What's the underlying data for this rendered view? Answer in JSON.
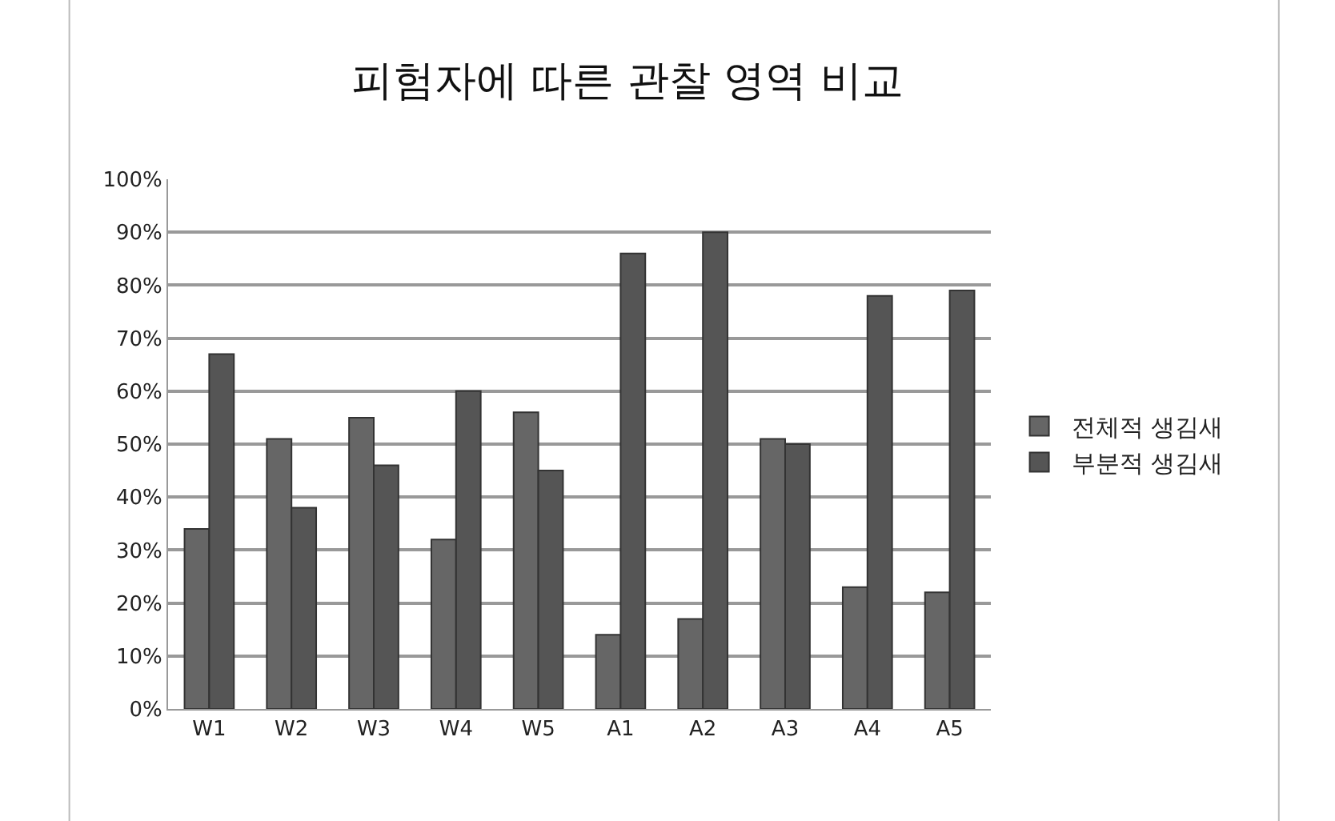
{
  "chart_data": {
    "type": "bar",
    "title": "피험자에 따른 관찰 영역 비교",
    "categories": [
      "W1",
      "W2",
      "W3",
      "W4",
      "W5",
      "A1",
      "A2",
      "A3",
      "A4",
      "A5"
    ],
    "series": [
      {
        "name": "전체적 생김새",
        "color": "#666666",
        "values": [
          0.34,
          0.51,
          0.55,
          0.32,
          0.56,
          0.14,
          0.17,
          0.51,
          0.23,
          0.22
        ]
      },
      {
        "name": "부분적 생김새",
        "color": "#555555",
        "values": [
          0.67,
          0.38,
          0.46,
          0.6,
          0.45,
          0.86,
          0.9,
          0.5,
          0.78,
          0.79
        ]
      }
    ],
    "ylim": [
      0,
      1
    ],
    "yticks": [
      {
        "value": 0,
        "label": "0%"
      },
      {
        "value": 0.1,
        "label": "10%"
      },
      {
        "value": 0.2,
        "label": "20%"
      },
      {
        "value": 0.3,
        "label": "30%"
      },
      {
        "value": 0.4,
        "label": "40%"
      },
      {
        "value": 0.5,
        "label": "50%"
      },
      {
        "value": 0.6,
        "label": "60%"
      },
      {
        "value": 0.7,
        "label": "70%"
      },
      {
        "value": 0.8,
        "label": "80%"
      },
      {
        "value": 0.9,
        "label": "90%"
      },
      {
        "value": 1,
        "label": "100%"
      }
    ],
    "grid": "y",
    "legend": "right"
  }
}
